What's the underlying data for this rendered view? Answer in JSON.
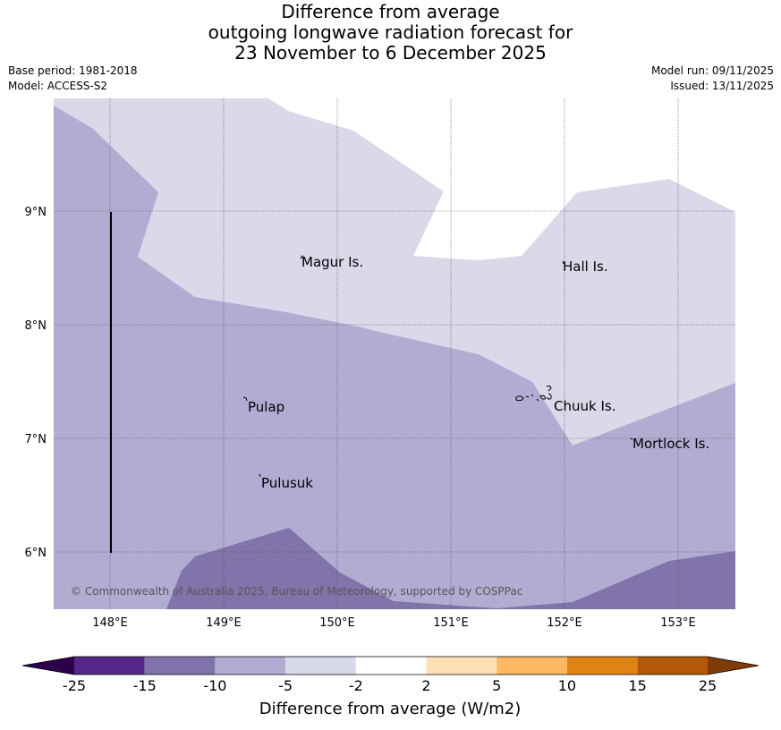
{
  "title": {
    "line1": "Difference from average",
    "line2": "outgoing longwave radiation forecast for",
    "line3": "23 November to 6 December 2025"
  },
  "meta": {
    "base_period": "Base period: 1981-2018",
    "model": "Model: ACCESS-S2",
    "model_run": "Model run: 09/11/2025",
    "issued": "Issued: 13/11/2025"
  },
  "map": {
    "lat_labels": [
      "9°N",
      "8°N",
      "7°N",
      "6°N"
    ],
    "lon_labels": [
      "148°E",
      "149°E",
      "150°E",
      "151°E",
      "152°E",
      "153°E"
    ],
    "places": [
      "Magur Is.",
      "Hall Is.",
      "Pulap",
      "Chuuk Is.",
      "Mortlock Is.",
      "Pulusuk"
    ],
    "copyright": "© Commonwealth of Australia 2025, Bureau of Meteorology, supported by COSPPac",
    "colors": {
      "band_m15_m10": "#8074aa",
      "band_m10_m5": "#b1acd1",
      "band_m5_m2": "#d9d9ea",
      "band_m2_2": "#ffffff"
    }
  },
  "colorbar": {
    "ticks": [
      "-25",
      "-15",
      "-10",
      "-5",
      "-2",
      "2",
      "5",
      "10",
      "15",
      "25"
    ],
    "colors": [
      "#2d004b",
      "#542788",
      "#8073ac",
      "#b2abd2",
      "#d8daeb",
      "#ffffff",
      "#fee0b6",
      "#fdb863",
      "#e08214",
      "#b35806",
      "#7f3b08"
    ],
    "label": "Difference from average (W/m2)"
  }
}
